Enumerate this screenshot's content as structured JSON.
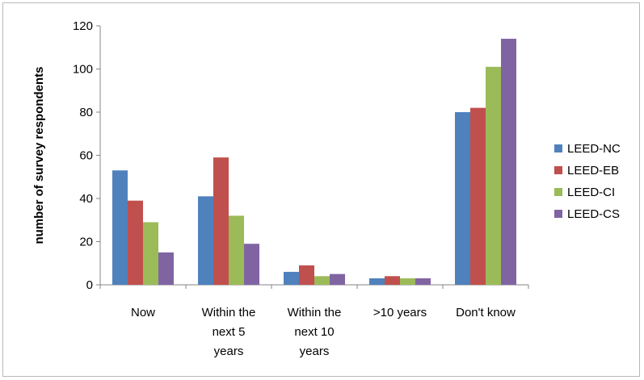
{
  "chart_data": {
    "type": "bar",
    "title": "",
    "xlabel": "",
    "ylabel": "number of survey respondents",
    "ylim": [
      0,
      120
    ],
    "yticks": [
      0,
      20,
      40,
      60,
      80,
      100,
      120
    ],
    "grid": false,
    "legend_position": "right",
    "categories": [
      [
        "Now"
      ],
      [
        "Within the",
        "next 5",
        "years"
      ],
      [
        "Within the",
        "next 10",
        "years"
      ],
      [
        ">10 years"
      ],
      [
        "Don't know"
      ]
    ],
    "series": [
      {
        "name": "LEED-NC",
        "color": "#4F81BD",
        "values": [
          53,
          41,
          6,
          3,
          80
        ]
      },
      {
        "name": "LEED-EB",
        "color": "#C0504D",
        "values": [
          39,
          59,
          9,
          4,
          82
        ]
      },
      {
        "name": "LEED-CI",
        "color": "#9BBB59",
        "values": [
          29,
          32,
          4,
          3,
          101
        ]
      },
      {
        "name": "LEED-CS",
        "color": "#8064A2",
        "values": [
          15,
          19,
          5,
          3,
          114
        ]
      }
    ]
  }
}
